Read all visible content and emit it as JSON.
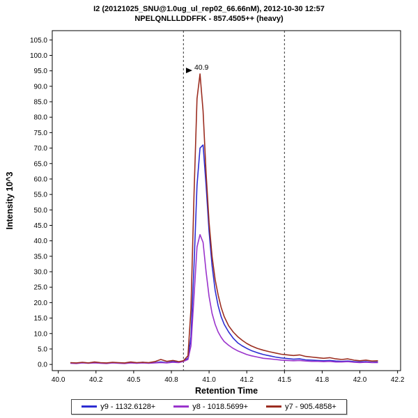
{
  "chart_data": {
    "type": "line",
    "title": "I2 (20121025_SNU@1.0ug_ul_rep02_66.66nM), 2012-10-30 12:57",
    "subtitle": "NPELQNLLLDDFFK - 857.4505++ (heavy)",
    "xlabel": "Retention Time",
    "ylabel": "Intensity 10^3",
    "xlim": [
      39.96,
      42.27
    ],
    "ylim": [
      -2,
      108
    ],
    "y_ticks": [
      0,
      5,
      10,
      15,
      20,
      25,
      30,
      35,
      40,
      45,
      50,
      55,
      60,
      65,
      70,
      75,
      80,
      85,
      90,
      95,
      100,
      105
    ],
    "x_tick_values": [
      40.0,
      40.25,
      40.5,
      40.75,
      41.0,
      41.25,
      41.5,
      41.75,
      42.0,
      42.25
    ],
    "x_tick_labels": [
      "40.0",
      "40.2",
      "40.5",
      "40.8",
      "41.0",
      "41.2",
      "41.5",
      "41.8",
      "42.0",
      "42.2"
    ],
    "boundaries": [
      40.83,
      41.5
    ],
    "boundary_style": "dashed",
    "grid": false,
    "legend_position": "bottom",
    "peak_annotation": {
      "label": "40.9",
      "x": 40.93,
      "y": 94,
      "color": "#b03030"
    },
    "x": [
      40.08,
      40.12,
      40.16,
      40.2,
      40.24,
      40.28,
      40.32,
      40.36,
      40.4,
      40.44,
      40.48,
      40.52,
      40.56,
      40.6,
      40.64,
      40.68,
      40.72,
      40.76,
      40.8,
      40.83,
      40.86,
      40.88,
      40.9,
      40.92,
      40.94,
      40.96,
      40.98,
      41.0,
      41.02,
      41.04,
      41.06,
      41.08,
      41.1,
      41.13,
      41.16,
      41.19,
      41.22,
      41.25,
      41.28,
      41.32,
      41.36,
      41.4,
      41.44,
      41.48,
      41.52,
      41.56,
      41.6,
      41.64,
      41.68,
      41.72,
      41.76,
      41.8,
      41.84,
      41.88,
      41.92,
      41.96,
      42.0,
      42.04,
      42.08,
      42.12
    ],
    "series": [
      {
        "id": "y9",
        "name": "y9 - 1132.6128+",
        "color": "#2d2dd2",
        "values": [
          0.5,
          0.4,
          0.6,
          0.5,
          0.7,
          0.5,
          0.4,
          0.6,
          0.5,
          0.4,
          0.6,
          0.5,
          0.7,
          0.5,
          0.6,
          0.8,
          0.6,
          0.9,
          0.7,
          1.2,
          2.0,
          9.0,
          32.0,
          58.0,
          70.0,
          71.0,
          58.0,
          43.0,
          32.0,
          24.0,
          19.0,
          15.5,
          13.0,
          10.5,
          8.5,
          7.0,
          6.0,
          5.2,
          4.5,
          3.8,
          3.2,
          2.8,
          2.4,
          2.1,
          1.9,
          1.7,
          1.8,
          1.5,
          1.4,
          1.3,
          1.2,
          1.3,
          1.1,
          1.0,
          1.1,
          0.9,
          0.8,
          0.9,
          0.7,
          0.8
        ]
      },
      {
        "id": "y8",
        "name": "y8 - 1018.5699+",
        "color": "#9a33cc",
        "values": [
          0.4,
          0.3,
          0.5,
          0.4,
          0.5,
          0.4,
          0.3,
          0.5,
          0.4,
          0.3,
          0.5,
          0.4,
          0.5,
          0.4,
          0.5,
          0.6,
          0.5,
          0.7,
          0.6,
          1.0,
          1.6,
          6.0,
          22.0,
          38.0,
          42.0,
          39.5,
          30.0,
          22.0,
          16.5,
          13.0,
          10.5,
          8.8,
          7.4,
          6.2,
          5.2,
          4.4,
          3.8,
          3.2,
          2.8,
          2.4,
          2.0,
          1.8,
          1.6,
          1.4,
          1.3,
          1.2,
          1.3,
          1.1,
          1.0,
          1.0,
          0.9,
          1.0,
          0.8,
          0.8,
          0.9,
          0.7,
          0.6,
          0.7,
          0.6,
          0.6
        ]
      },
      {
        "id": "y7",
        "name": "y7 - 905.4858+",
        "color": "#9b2d20",
        "values": [
          0.6,
          0.5,
          0.7,
          0.5,
          0.8,
          0.6,
          0.5,
          0.7,
          0.6,
          0.5,
          0.8,
          0.6,
          0.7,
          0.6,
          0.9,
          1.6,
          1.0,
          1.3,
          0.9,
          1.2,
          2.8,
          18.0,
          55.0,
          86.0,
          94.0,
          82.0,
          62.0,
          46.0,
          35.0,
          27.5,
          22.5,
          18.5,
          15.5,
          12.5,
          10.5,
          9.0,
          7.8,
          6.8,
          6.0,
          5.2,
          4.6,
          4.1,
          3.7,
          3.3,
          3.1,
          2.9,
          3.1,
          2.6,
          2.4,
          2.2,
          2.0,
          2.2,
          1.8,
          1.6,
          1.8,
          1.4,
          1.2,
          1.4,
          1.1,
          1.2
        ]
      }
    ]
  }
}
